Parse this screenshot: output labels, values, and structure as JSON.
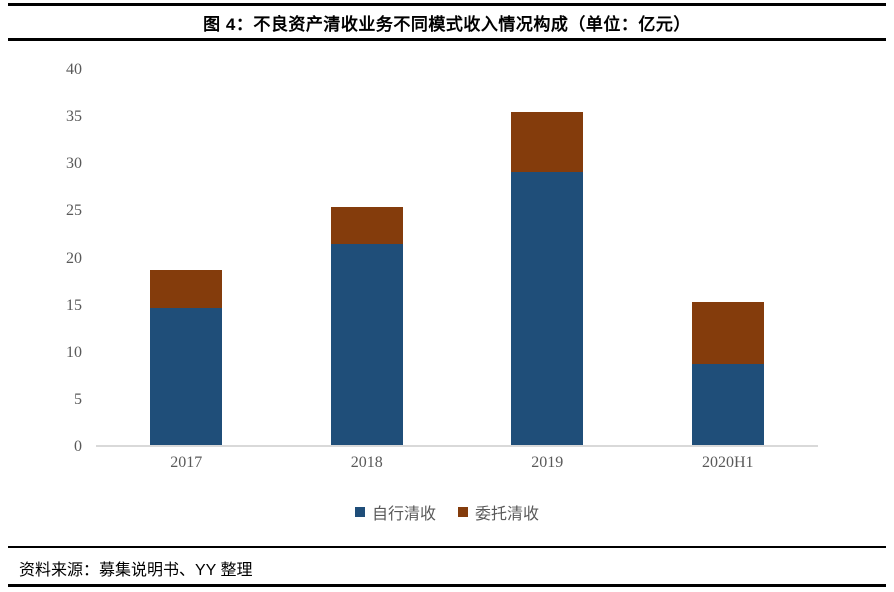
{
  "header": {
    "title": "图 4：不良资产清收业务不同模式收入情况构成（单位：亿元）"
  },
  "chart_data": {
    "type": "bar",
    "stacked": true,
    "categories": [
      "2017",
      "2018",
      "2019",
      "2020H1"
    ],
    "series": [
      {
        "name": "自行清收",
        "color": "#1F4E79",
        "values": [
          14.5,
          21.3,
          29.0,
          8.6
        ]
      },
      {
        "name": "委托清收",
        "color": "#843C0C",
        "values": [
          4.0,
          3.9,
          6.4,
          6.6
        ]
      }
    ],
    "title": "",
    "xlabel": "",
    "ylabel": "",
    "ylim": [
      0,
      40
    ],
    "yticks": [
      0,
      5,
      10,
      15,
      20,
      25,
      30,
      35,
      40
    ],
    "grid": false,
    "legend_position": "bottom",
    "axis_line_color": "#d9d9d9",
    "tick_label_color": "#595959"
  },
  "footer": {
    "source": "资料来源：募集说明书、YY 整理"
  }
}
